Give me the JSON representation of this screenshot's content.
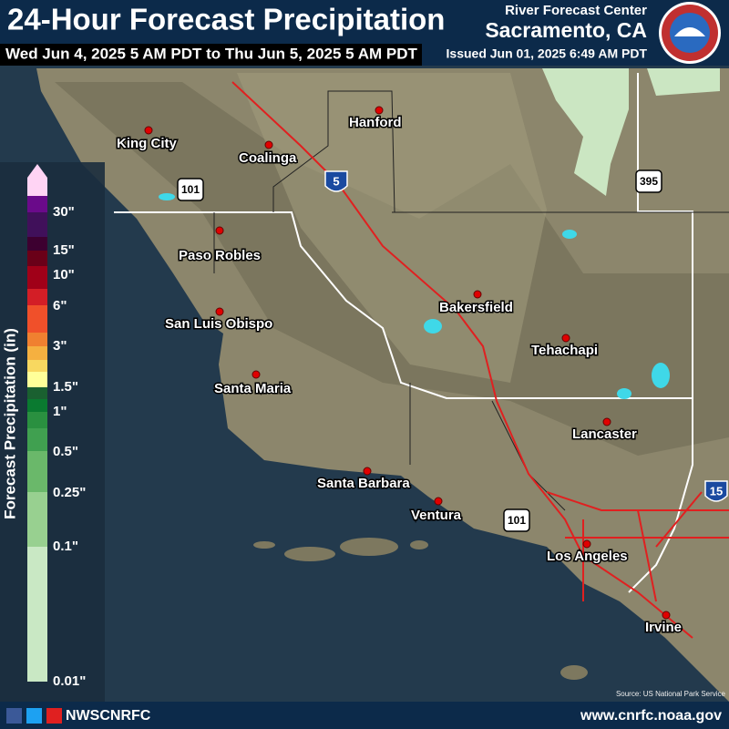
{
  "header": {
    "title": "24-Hour Forecast Precipitation",
    "period": "Wed Jun 4, 2025 5 AM PDT to Thu Jun 5, 2025 5 AM PDT",
    "agency": "River Forecast Center",
    "location": "Sacramento, CA",
    "issued": "Issued Jun 01, 2025 6:49 AM PDT"
  },
  "legend": {
    "title": "Forecast Precipitation (in)",
    "labels": [
      "30\"",
      "15\"",
      "10\"",
      "6\"",
      "3\"",
      "1.5\"",
      "1\"",
      "0.5\"",
      "0.25\"",
      "0.1\"",
      "0.01\""
    ]
  },
  "cities": [
    "King City",
    "Coalinga",
    "Hanford",
    "Paso Robles",
    "San Luis Obispo",
    "Bakersfield",
    "Tehachapi",
    "Santa Maria",
    "Lancaster",
    "Santa Barbara",
    "Ventura",
    "Los Angeles",
    "Irvine"
  ],
  "highways": [
    "5",
    "101",
    "395",
    "101",
    "15"
  ],
  "credit": "Source: US National Park Service",
  "footer": {
    "social": "NWSCNRFC",
    "url": "www.cnrfc.noaa.gov"
  }
}
